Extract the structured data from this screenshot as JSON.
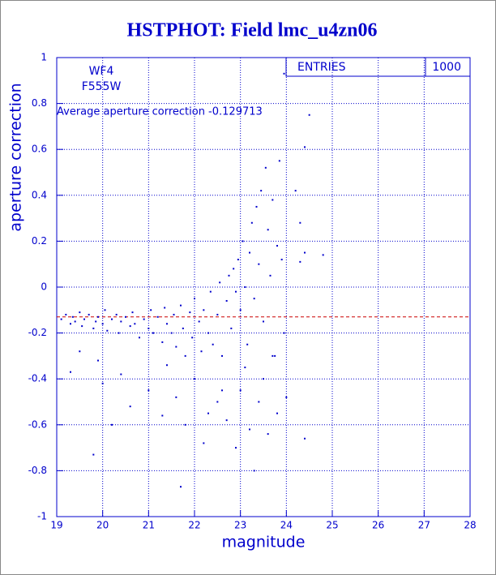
{
  "chart_data": {
    "type": "scatter",
    "title": "HSTPHOT: Field lmc_u4zn06",
    "x_label": "magnitude",
    "y_label": "aperture correction",
    "labels": [
      "WF4",
      "F555W"
    ],
    "annotation": "Average aperture correction -0.129713",
    "mean": -0.129713,
    "mean_color": "#cc0000",
    "stats": {
      "label": "ENTRIES",
      "value": 1000
    },
    "xlim": [
      19,
      28
    ],
    "ylim": [
      -1,
      1
    ],
    "xticks": [
      19,
      20,
      21,
      22,
      23,
      24,
      25,
      26,
      27,
      28
    ],
    "yticks": [
      -1,
      -0.8,
      -0.6,
      -0.4,
      -0.2,
      0,
      0.2,
      0.4,
      0.6,
      0.8,
      1
    ],
    "grid": true,
    "color": "#0000cc",
    "x": [
      19.1,
      19.2,
      19.3,
      19.35,
      19.4,
      19.5,
      19.55,
      19.6,
      19.7,
      19.8,
      19.85,
      19.9,
      20.0,
      20.05,
      20.1,
      20.2,
      20.3,
      20.35,
      20.4,
      20.5,
      20.6,
      20.65,
      20.7,
      20.8,
      20.9,
      21.0,
      21.05,
      21.1,
      21.2,
      21.3,
      21.35,
      21.4,
      21.5,
      21.55,
      21.6,
      21.7,
      21.75,
      21.8,
      21.9,
      21.95,
      22.0,
      22.1,
      22.15,
      22.2,
      22.3,
      22.35,
      22.4,
      22.5,
      22.55,
      22.6,
      22.7,
      22.75,
      22.8,
      22.85,
      22.9,
      22.95,
      23.0,
      23.05,
      23.1,
      23.15,
      23.2,
      23.25,
      23.3,
      23.35,
      23.4,
      23.45,
      23.5,
      23.55,
      23.6,
      23.65,
      23.7,
      23.75,
      23.8,
      23.85,
      23.9,
      23.95,
      19.3,
      19.5,
      19.9,
      20.0,
      20.4,
      20.6,
      21.0,
      21.3,
      21.6,
      21.8,
      22.0,
      22.3,
      22.5,
      22.7,
      23.0,
      23.2,
      23.4,
      23.6,
      23.8,
      24.0,
      24.2,
      24.3,
      24.4,
      24.5,
      24.4,
      24.8,
      24.3,
      24.4,
      21.7,
      19.8,
      23.3,
      23.95,
      20.2,
      21.4,
      22.2,
      22.6,
      23.1,
      23.5,
      23.7,
      22.9
    ],
    "y": [
      -0.14,
      -0.12,
      -0.16,
      -0.13,
      -0.15,
      -0.11,
      -0.17,
      -0.14,
      -0.12,
      -0.18,
      -0.15,
      -0.13,
      -0.16,
      -0.1,
      -0.19,
      -0.14,
      -0.12,
      -0.2,
      -0.15,
      -0.13,
      -0.17,
      -0.11,
      -0.16,
      -0.22,
      -0.14,
      -0.18,
      -0.1,
      -0.2,
      -0.13,
      -0.24,
      -0.09,
      -0.16,
      -0.2,
      -0.12,
      -0.26,
      -0.08,
      -0.18,
      -0.3,
      -0.11,
      -0.22,
      -0.05,
      -0.15,
      -0.28,
      -0.1,
      -0.2,
      -0.02,
      -0.25,
      -0.12,
      0.02,
      -0.3,
      -0.06,
      0.05,
      -0.18,
      0.08,
      -0.02,
      0.12,
      -0.1,
      0.2,
      0.0,
      -0.25,
      0.15,
      0.28,
      -0.05,
      0.35,
      0.1,
      0.42,
      -0.15,
      0.52,
      0.25,
      0.05,
      0.38,
      -0.3,
      0.18,
      0.55,
      0.12,
      -0.2,
      -0.37,
      -0.28,
      -0.32,
      -0.42,
      -0.38,
      -0.52,
      -0.45,
      -0.56,
      -0.48,
      -0.6,
      -0.4,
      -0.55,
      -0.5,
      -0.58,
      -0.45,
      -0.62,
      -0.5,
      -0.64,
      -0.55,
      -0.48,
      0.42,
      0.28,
      0.61,
      0.75,
      0.15,
      0.14,
      0.11,
      -0.66,
      -0.87,
      -0.73,
      -0.8,
      0.93,
      -0.6,
      -0.34,
      -0.68,
      -0.45,
      -0.35,
      -0.4,
      -0.3,
      -0.7
    ]
  }
}
